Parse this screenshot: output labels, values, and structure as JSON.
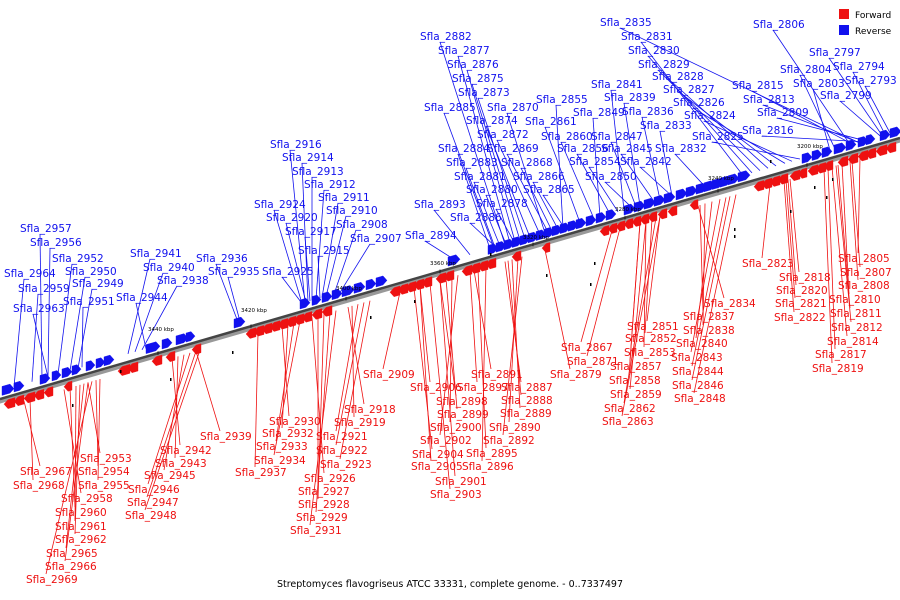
{
  "caption": "Streptomyces flavogriseus ATCC 33331, complete genome. - 0..7337497",
  "legend": [
    {
      "label": "Forward",
      "color": "#ee1111"
    },
    {
      "label": "Reverse",
      "color": "#1111ee"
    }
  ],
  "ticks": [
    "3200 kbp",
    "3240 kbp",
    "3280 kbp",
    "3320 kbp",
    "3360 kbp",
    "3400 kbp",
    "3420 kbp",
    "3440 kbp"
  ],
  "reverse_labels": [
    "Sfla_2806",
    "Sfla_2835",
    "Sfla_2797",
    "Sfla_2831",
    "Sfla_2804",
    "Sfla_2794",
    "Sfla_2830",
    "Sfla_2882",
    "Sfla_2803",
    "Sfla_2793",
    "Sfla_2829",
    "Sfla_2877",
    "Sfla_2828",
    "Sfla_2815",
    "Sfla_2841",
    "Sfla_2799",
    "Sfla_2876",
    "Sfla_2827",
    "Sfla_2875",
    "Sfla_2839",
    "Sfla_2813",
    "Sfla_2855",
    "Sfla_2826",
    "Sfla_2873",
    "Sfla_2849",
    "Sfla_2836",
    "Sfla_2809",
    "Sfla_2885",
    "Sfla_2870",
    "Sfla_2824",
    "Sfla_2861",
    "Sfla_2874",
    "Sfla_2833",
    "Sfla_2816",
    "Sfla_2872",
    "Sfla_2860",
    "Sfla_2847",
    "Sfla_2825",
    "Sfla_2916",
    "Sfla_2884",
    "Sfla_2869",
    "Sfla_2856",
    "Sfla_2845",
    "Sfla_2832",
    "Sfla_2914",
    "Sfla_2883",
    "Sfla_2868",
    "Sfla_2854",
    "Sfla_2842",
    "Sfla_2913",
    "Sfla_2881",
    "Sfla_2866",
    "Sfla_2850",
    "Sfla_2912",
    "Sfla_2880",
    "Sfla_2865",
    "Sfla_2911",
    "Sfla_2924",
    "Sfla_2893",
    "Sfla_2878",
    "Sfla_2910",
    "Sfla_2886",
    "Sfla_2920",
    "Sfla_2908",
    "Sfla_2957",
    "Sfla_2917",
    "Sfla_2894",
    "Sfla_2907",
    "Sfla_2956",
    "Sfla_2915",
    "Sfla_2941",
    "Sfla_2952",
    "Sfla_2936",
    "Sfla_2940",
    "Sfla_2964",
    "Sfla_2950",
    "Sfla_2935",
    "Sfla_2925",
    "Sfla_2938",
    "Sfla_2959",
    "Sfla_2949",
    "Sfla_2944",
    "Sfla_2951",
    "Sfla_2963"
  ],
  "forward_labels": [
    "Sfla_2823",
    "Sfla_2805",
    "Sfla_2818",
    "Sfla_2807",
    "Sfla_2820",
    "Sfla_2808",
    "Sfla_2821",
    "Sfla_2810",
    "Sfla_2834",
    "Sfla_2822",
    "Sfla_2811",
    "Sfla_2837",
    "Sfla_2812",
    "Sfla_2851",
    "Sfla_2838",
    "Sfla_2814",
    "Sfla_2852",
    "Sfla_2840",
    "Sfla_2867",
    "Sfla_2853",
    "Sfla_2817",
    "Sfla_2871",
    "Sfla_2843",
    "Sfla_2819",
    "Sfla_2857",
    "Sfla_2844",
    "Sfla_2909",
    "Sfla_2891",
    "Sfla_2879",
    "Sfla_2858",
    "Sfla_2846",
    "Sfla_2906",
    "Sfla_2897",
    "Sfla_2887",
    "Sfla_2859",
    "Sfla_2848",
    "Sfla_2898",
    "Sfla_2888",
    "Sfla_2862",
    "Sfla_2918",
    "Sfla_2899",
    "Sfla_2889",
    "Sfla_2863",
    "Sfla_2930",
    "Sfla_2919",
    "Sfla_2900",
    "Sfla_2890",
    "Sfla_2939",
    "Sfla_2932",
    "Sfla_2921",
    "Sfla_2902",
    "Sfla_2892",
    "Sfla_2942",
    "Sfla_2933",
    "Sfla_2922",
    "Sfla_2953",
    "Sfla_2943",
    "Sfla_2934",
    "Sfla_2904",
    "Sfla_2895",
    "Sfla_2923",
    "Sfla_2905",
    "Sfla_2896",
    "Sfla_2967",
    "Sfla_2954",
    "Sfla_2945",
    "Sfla_2937",
    "Sfla_2926",
    "Sfla_2901",
    "Sfla_2968",
    "Sfla_2955",
    "Sfla_2946",
    "Sfla_2927",
    "Sfla_2903",
    "Sfla_2958",
    "Sfla_2947",
    "Sfla_2928",
    "Sfla_2960",
    "Sfla_2948",
    "Sfla_2929",
    "Sfla_2961",
    "Sfla_2931",
    "Sfla_2962",
    "Sfla_2965",
    "Sfla_2966",
    "Sfla_2969"
  ]
}
